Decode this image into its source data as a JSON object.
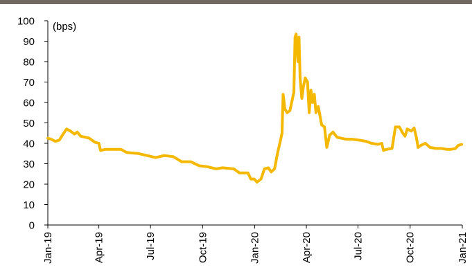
{
  "chart_data": {
    "type": "line",
    "title": "",
    "xlabel": "",
    "ylabel": "(bps)",
    "ylim": [
      0,
      100
    ],
    "yticks": [
      0,
      10,
      20,
      30,
      40,
      50,
      60,
      70,
      80,
      90,
      100
    ],
    "xlim": [
      "2019-01-01",
      "2021-01-01"
    ],
    "xticks": [
      {
        "date": "2019-01-01",
        "label": "Jan-19"
      },
      {
        "date": "2019-04-01",
        "label": "Apr-19"
      },
      {
        "date": "2019-07-01",
        "label": "Jul-19"
      },
      {
        "date": "2019-10-01",
        "label": "Oct-19"
      },
      {
        "date": "2020-01-01",
        "label": "Jan-20"
      },
      {
        "date": "2020-04-01",
        "label": "Apr-20"
      },
      {
        "date": "2020-07-01",
        "label": "Jul-20"
      },
      {
        "date": "2020-10-01",
        "label": "Oct-20"
      },
      {
        "date": "2021-01-01",
        "label": "Jan-21"
      }
    ],
    "grid": false,
    "legend": "none",
    "series_color": "#F5B800",
    "series": [
      {
        "name": "",
        "points": [
          [
            "2019-01-01",
            42.5
          ],
          [
            "2019-01-07",
            42.0
          ],
          [
            "2019-01-14",
            41.0
          ],
          [
            "2019-01-21",
            41.5
          ],
          [
            "2019-01-28",
            44.5
          ],
          [
            "2019-02-03",
            47.0
          ],
          [
            "2019-02-10",
            46.0
          ],
          [
            "2019-02-17",
            44.5
          ],
          [
            "2019-02-22",
            45.5
          ],
          [
            "2019-02-28",
            43.5
          ],
          [
            "2019-03-08",
            43.0
          ],
          [
            "2019-03-15",
            42.5
          ],
          [
            "2019-03-25",
            40.5
          ],
          [
            "2019-04-01",
            40.0
          ],
          [
            "2019-04-04",
            36.5
          ],
          [
            "2019-04-12",
            37.0
          ],
          [
            "2019-04-25",
            37.0
          ],
          [
            "2019-05-10",
            37.0
          ],
          [
            "2019-05-20",
            35.5
          ],
          [
            "2019-06-10",
            35.0
          ],
          [
            "2019-06-25",
            34.0
          ],
          [
            "2019-07-10",
            33.0
          ],
          [
            "2019-07-25",
            34.0
          ],
          [
            "2019-08-10",
            33.5
          ],
          [
            "2019-08-25",
            31.0
          ],
          [
            "2019-09-10",
            31.0
          ],
          [
            "2019-09-25",
            29.0
          ],
          [
            "2019-10-10",
            28.5
          ],
          [
            "2019-10-25",
            27.5
          ],
          [
            "2019-11-05",
            28.0
          ],
          [
            "2019-11-25",
            27.5
          ],
          [
            "2019-12-05",
            25.5
          ],
          [
            "2019-12-20",
            25.5
          ],
          [
            "2019-12-25",
            22.5
          ],
          [
            "2019-12-31",
            22.5
          ],
          [
            "2020-01-05",
            21.0
          ],
          [
            "2020-01-12",
            22.5
          ],
          [
            "2020-01-18",
            27.5
          ],
          [
            "2020-01-25",
            28.0
          ],
          [
            "2020-01-30",
            26.0
          ],
          [
            "2020-02-05",
            27.5
          ],
          [
            "2020-02-10",
            35.0
          ],
          [
            "2020-02-15",
            41.0
          ],
          [
            "2020-02-18",
            45.0
          ],
          [
            "2020-02-20",
            64.0
          ],
          [
            "2020-02-23",
            57.0
          ],
          [
            "2020-02-27",
            55.0
          ],
          [
            "2020-03-03",
            56.0
          ],
          [
            "2020-03-06",
            60.0
          ],
          [
            "2020-03-10",
            65.0
          ],
          [
            "2020-03-12",
            92.0
          ],
          [
            "2020-03-14",
            93.5
          ],
          [
            "2020-03-17",
            80.0
          ],
          [
            "2020-03-19",
            92.0
          ],
          [
            "2020-03-21",
            72.0
          ],
          [
            "2020-03-24",
            62.0
          ],
          [
            "2020-03-27",
            68.0
          ],
          [
            "2020-03-30",
            72.0
          ],
          [
            "2020-04-03",
            70.0
          ],
          [
            "2020-04-06",
            55.0
          ],
          [
            "2020-04-09",
            66.0
          ],
          [
            "2020-04-12",
            60.0
          ],
          [
            "2020-04-15",
            64.0
          ],
          [
            "2020-04-18",
            55.0
          ],
          [
            "2020-04-22",
            58.0
          ],
          [
            "2020-04-28",
            49.0
          ],
          [
            "2020-05-03",
            48.0
          ],
          [
            "2020-05-07",
            38.0
          ],
          [
            "2020-05-12",
            44.0
          ],
          [
            "2020-05-18",
            45.5
          ],
          [
            "2020-05-25",
            43.0
          ],
          [
            "2020-06-01",
            42.5
          ],
          [
            "2020-06-10",
            42.0
          ],
          [
            "2020-06-20",
            42.0
          ],
          [
            "2020-07-05",
            41.5
          ],
          [
            "2020-07-15",
            41.0
          ],
          [
            "2020-07-25",
            40.0
          ],
          [
            "2020-08-05",
            39.5
          ],
          [
            "2020-08-12",
            40.0
          ],
          [
            "2020-08-15",
            36.5
          ],
          [
            "2020-08-20",
            37.0
          ],
          [
            "2020-08-30",
            37.5
          ],
          [
            "2020-09-05",
            48.0
          ],
          [
            "2020-09-12",
            48.0
          ],
          [
            "2020-09-18",
            45.0
          ],
          [
            "2020-09-22",
            43.5
          ],
          [
            "2020-09-26",
            47.0
          ],
          [
            "2020-10-03",
            46.0
          ],
          [
            "2020-10-08",
            47.5
          ],
          [
            "2020-10-12",
            43.0
          ],
          [
            "2020-10-15",
            38.0
          ],
          [
            "2020-10-20",
            39.0
          ],
          [
            "2020-10-28",
            40.0
          ],
          [
            "2020-11-05",
            38.0
          ],
          [
            "2020-11-15",
            37.5
          ],
          [
            "2020-11-25",
            37.5
          ],
          [
            "2020-12-05",
            37.0
          ],
          [
            "2020-12-12",
            37.0
          ],
          [
            "2020-12-20",
            37.5
          ],
          [
            "2020-12-25",
            39.0
          ],
          [
            "2020-12-31",
            39.5
          ]
        ]
      }
    ]
  }
}
